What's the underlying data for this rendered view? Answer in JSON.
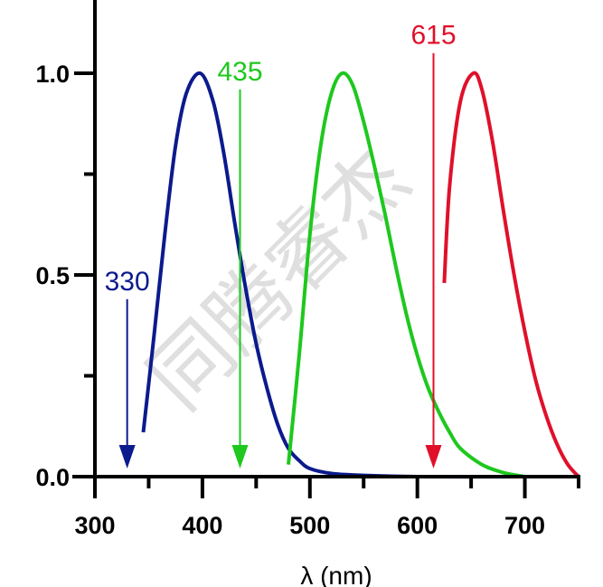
{
  "chart_data": {
    "type": "line",
    "title": "",
    "xlabel": "λ (nm)",
    "ylabel": "",
    "xlim": [
      300,
      750
    ],
    "ylim": [
      0,
      1.15
    ],
    "grid": false,
    "x_ticks": [
      "300",
      "400",
      "500",
      "600",
      "700"
    ],
    "y_ticks": [
      "0.0",
      "0.5",
      "1.0"
    ],
    "series": [
      {
        "color": "#0b1a8c",
        "points": [
          [
            345,
            0.11
          ],
          [
            355,
            0.35
          ],
          [
            365,
            0.6
          ],
          [
            375,
            0.82
          ],
          [
            385,
            0.95
          ],
          [
            398,
            1.0
          ],
          [
            410,
            0.93
          ],
          [
            420,
            0.8
          ],
          [
            430,
            0.63
          ],
          [
            440,
            0.47
          ],
          [
            450,
            0.33
          ],
          [
            460,
            0.22
          ],
          [
            470,
            0.13
          ],
          [
            480,
            0.07
          ],
          [
            490,
            0.04
          ],
          [
            500,
            0.02
          ],
          [
            520,
            0.008
          ],
          [
            550,
            0.003
          ],
          [
            600,
            0
          ],
          [
            700,
            0
          ]
        ]
      },
      {
        "color": "#1ec81e",
        "points": [
          [
            480,
            0.03
          ],
          [
            490,
            0.3
          ],
          [
            500,
            0.6
          ],
          [
            510,
            0.82
          ],
          [
            520,
            0.95
          ],
          [
            530,
            1.0
          ],
          [
            540,
            0.97
          ],
          [
            550,
            0.88
          ],
          [
            560,
            0.77
          ],
          [
            570,
            0.65
          ],
          [
            580,
            0.52
          ],
          [
            590,
            0.4
          ],
          [
            600,
            0.3
          ],
          [
            610,
            0.22
          ],
          [
            620,
            0.16
          ],
          [
            630,
            0.11
          ],
          [
            640,
            0.07
          ],
          [
            660,
            0.03
          ],
          [
            680,
            0.01
          ],
          [
            700,
            0
          ]
        ]
      },
      {
        "color": "#e0102a",
        "points": [
          [
            625,
            0.48
          ],
          [
            630,
            0.72
          ],
          [
            640,
            0.93
          ],
          [
            652,
            1.0
          ],
          [
            660,
            0.96
          ],
          [
            670,
            0.83
          ],
          [
            680,
            0.66
          ],
          [
            690,
            0.5
          ],
          [
            700,
            0.36
          ],
          [
            710,
            0.24
          ],
          [
            720,
            0.15
          ],
          [
            730,
            0.08
          ],
          [
            740,
            0.03
          ],
          [
            750,
            0
          ]
        ]
      }
    ],
    "annotations": [
      {
        "label": "330",
        "x": 330,
        "color": "#0b1a8c",
        "top": 0.44
      },
      {
        "label": "435",
        "x": 435,
        "color": "#1ec81e",
        "top": 0.96
      },
      {
        "label": "615",
        "x": 615,
        "color": "#e0102a",
        "top": 1.05
      }
    ]
  },
  "watermark": "同腾睿杰"
}
